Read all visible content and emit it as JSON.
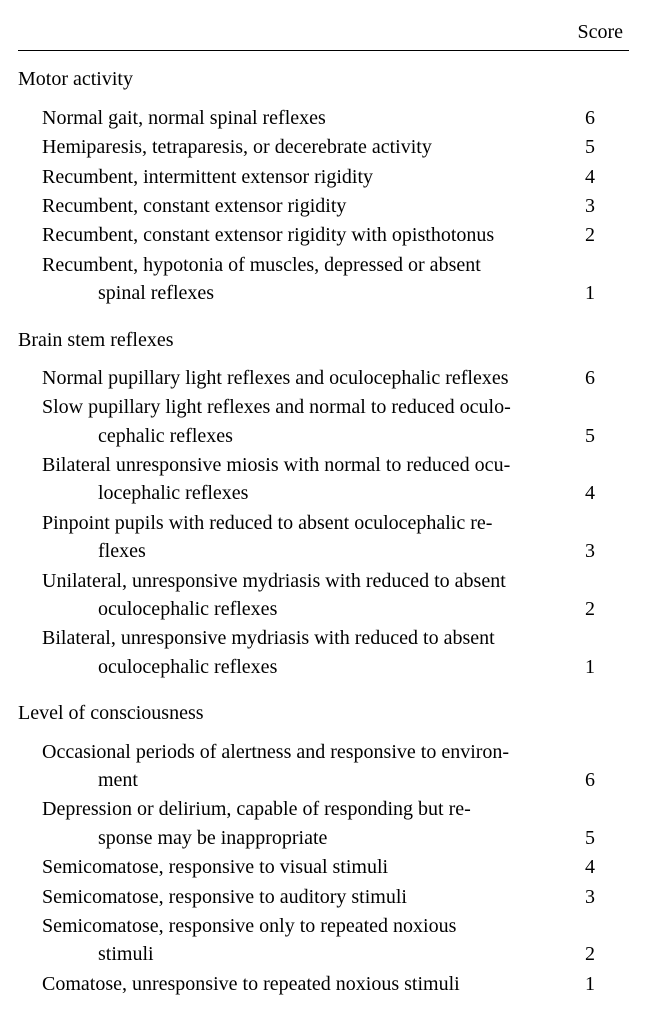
{
  "header": {
    "score_label": "Score"
  },
  "font": {
    "family": "Times New Roman",
    "size_pt": 15,
    "color": "#000000"
  },
  "background_color": "#ffffff",
  "rule_color": "#000000",
  "sections": [
    {
      "title": "Motor activity",
      "items": [
        {
          "lines": [
            "Normal gait, normal spinal reflexes"
          ],
          "score": 6
        },
        {
          "lines": [
            "Hemiparesis, tetraparesis, or decerebrate activity"
          ],
          "score": 5
        },
        {
          "lines": [
            "Recumbent, intermittent extensor rigidity"
          ],
          "score": 4
        },
        {
          "lines": [
            "Recumbent, constant extensor rigidity"
          ],
          "score": 3
        },
        {
          "lines": [
            "Recumbent, constant extensor rigidity with opisthotonus"
          ],
          "score": 2
        },
        {
          "lines": [
            "Recumbent, hypotonia of muscles, depressed or absent",
            "spinal reflexes"
          ],
          "score": 1
        }
      ]
    },
    {
      "title": "Brain stem reflexes",
      "items": [
        {
          "lines": [
            "Normal pupillary light reflexes and oculocephalic reflexes"
          ],
          "score": 6
        },
        {
          "lines": [
            "Slow pupillary light reflexes and normal to reduced oculo-",
            "cephalic reflexes"
          ],
          "score": 5
        },
        {
          "lines": [
            "Bilateral unresponsive miosis with normal to reduced ocu-",
            "locephalic reflexes"
          ],
          "score": 4
        },
        {
          "lines": [
            "Pinpoint pupils with reduced to absent oculocephalic re-",
            "flexes"
          ],
          "score": 3
        },
        {
          "lines": [
            "Unilateral, unresponsive mydriasis with reduced to absent",
            "oculocephalic reflexes"
          ],
          "score": 2
        },
        {
          "lines": [
            "Bilateral, unresponsive mydriasis with reduced to absent",
            "oculocephalic reflexes"
          ],
          "score": 1
        }
      ]
    },
    {
      "title": "Level of consciousness",
      "items": [
        {
          "lines": [
            "Occasional periods of alertness and responsive to environ-",
            "ment"
          ],
          "score": 6
        },
        {
          "lines": [
            "Depression or delirium, capable of responding but re-",
            "sponse may be inappropriate"
          ],
          "score": 5
        },
        {
          "lines": [
            "Semicomatose, responsive to visual stimuli"
          ],
          "score": 4
        },
        {
          "lines": [
            "Semicomatose, responsive to auditory stimuli"
          ],
          "score": 3
        },
        {
          "lines": [
            "Semicomatose, responsive only to repeated noxious",
            "stimuli"
          ],
          "score": 2
        },
        {
          "lines": [
            "Comatose, unresponsive to repeated noxious stimuli"
          ],
          "score": 1
        }
      ]
    }
  ]
}
